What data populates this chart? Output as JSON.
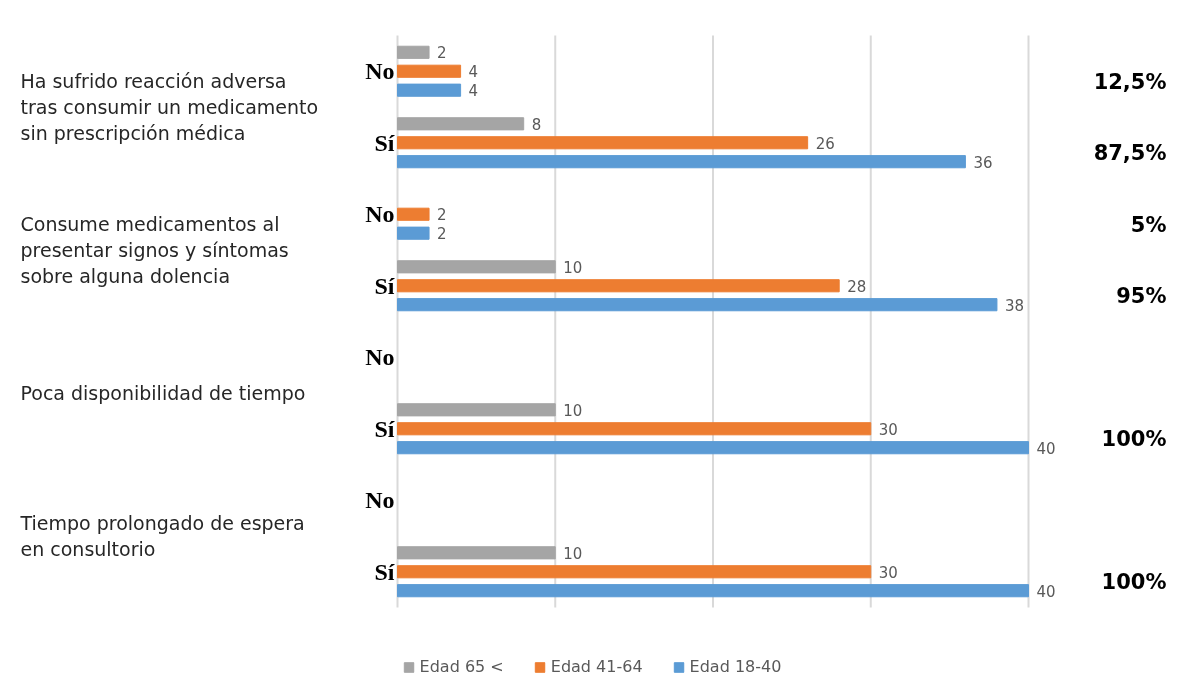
{
  "chart_data": {
    "type": "bar",
    "orientation": "horizontal",
    "categories": [
      "No",
      "Sí",
      "No",
      "Sí",
      "No",
      "Sí",
      "No",
      "Sí"
    ],
    "series": [
      {
        "name": "Edad 65 <",
        "color": "#a5a5a5",
        "values": [
          2,
          8,
          null,
          10,
          null,
          10,
          null,
          10
        ]
      },
      {
        "name": "Edad 41-64",
        "color": "#ed7d31",
        "values": [
          4,
          26,
          2,
          28,
          null,
          30,
          null,
          30
        ]
      },
      {
        "name": "Edad 18-40",
        "color": "#5b9bd5",
        "values": [
          4,
          36,
          2,
          38,
          null,
          40,
          null,
          40
        ]
      }
    ],
    "xlim": [
      0,
      40
    ],
    "tick_labels": "y",
    "grid": "x",
    "data_labels": true,
    "legend": "bottom",
    "annotations": [
      "Ha sufrido reacción adversa\ntras consumir un medicamento\nsin prescripción médica",
      "Consume medicamentos al\npresentar signos y síntomas\nsobre alguna dolencia",
      "Poca disponibilidad de tiempo",
      "Tiempo prolongado de espera\nen consultorio",
      "12,5%",
      "87,5%",
      "5%",
      "95%",
      "100%",
      "100%"
    ]
  }
}
